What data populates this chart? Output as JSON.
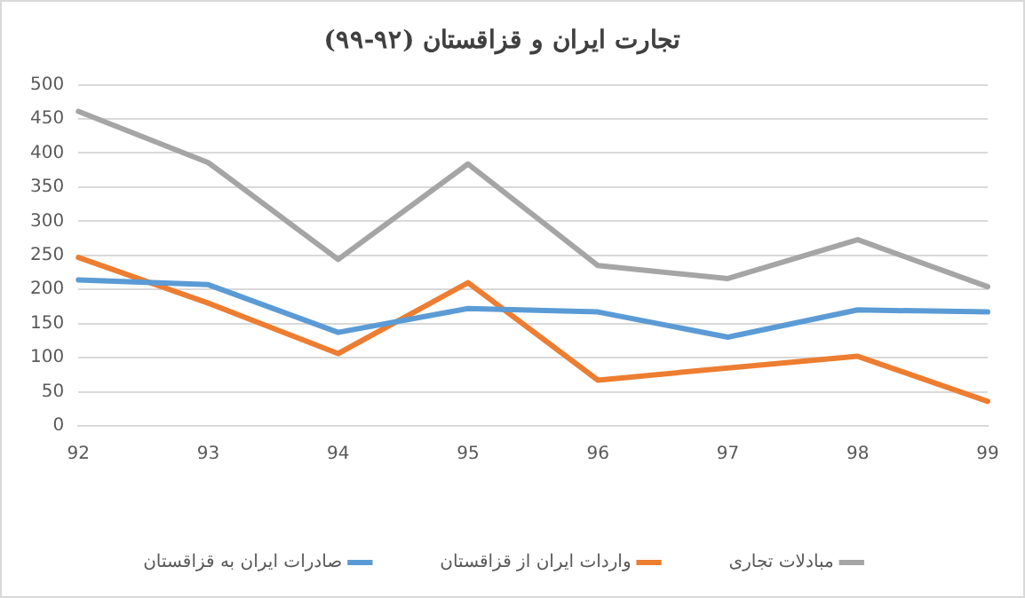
{
  "chart_data": {
    "type": "line",
    "title": "تجارت ایران و قزاقستان (۹۲-۹۹)",
    "categories": [
      "92",
      "93",
      "94",
      "95",
      "96",
      "97",
      "98",
      "99"
    ],
    "series": [
      {
        "name": "صادرات ایران به قزاقستان",
        "color": "#5b9bd5",
        "values": [
          214,
          207,
          137,
          172,
          167,
          130,
          170,
          167
        ]
      },
      {
        "name": "واردات ایران از قزاقستان",
        "color": "#ed7d31",
        "values": [
          247,
          180,
          106,
          210,
          67,
          85,
          102,
          36
        ]
      },
      {
        "name": "مبادلات تجاری",
        "color": "#a5a5a5",
        "values": [
          461,
          386,
          244,
          384,
          235,
          216,
          273,
          204
        ]
      }
    ],
    "ylim": [
      0,
      500
    ],
    "yticks": [
      0,
      50,
      100,
      150,
      200,
      250,
      300,
      350,
      400,
      450,
      500
    ],
    "grid": "y",
    "legend": "bottom",
    "marker": "none",
    "line_style": "solid"
  }
}
